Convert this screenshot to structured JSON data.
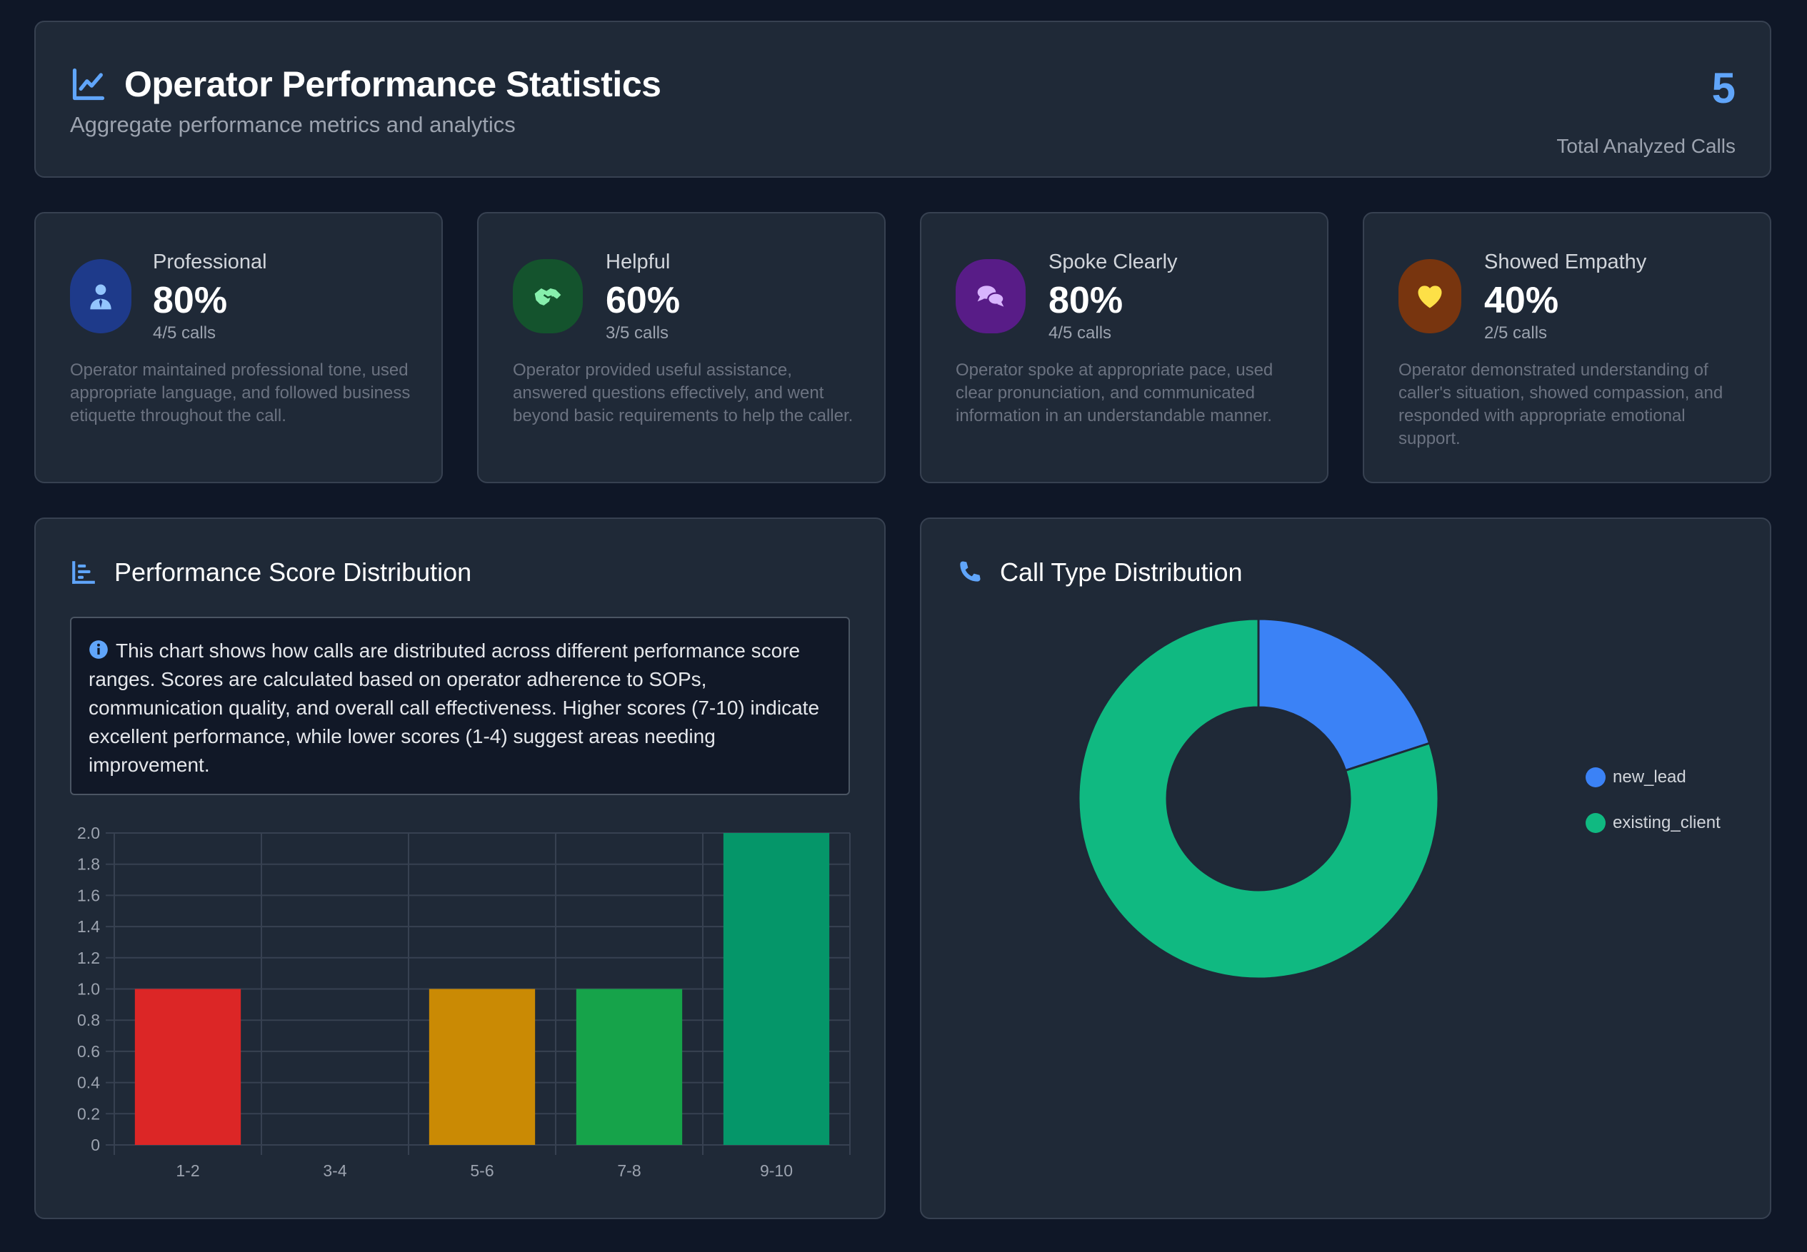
{
  "header": {
    "title": "Operator Performance Statistics",
    "subtitle": "Aggregate performance metrics and analytics",
    "total_value": "5",
    "total_label": "Total Analyzed Calls",
    "icon": "chart-line-icon"
  },
  "metrics": [
    {
      "label": "Professional",
      "value": "80%",
      "calls": "4/5 calls",
      "description": "Operator maintained professional tone, used appropriate language, and followed business etiquette throughout the call.",
      "icon": "user-tie-icon",
      "icon_bg": "#1e3a8a",
      "icon_color": "#93c5fd"
    },
    {
      "label": "Helpful",
      "value": "60%",
      "calls": "3/5 calls",
      "description": "Operator provided useful assistance, answered questions effectively, and went beyond basic requirements to help the caller.",
      "icon": "handshake-icon",
      "icon_bg": "#14532d",
      "icon_color": "#86efac"
    },
    {
      "label": "Spoke Clearly",
      "value": "80%",
      "calls": "4/5 calls",
      "description": "Operator spoke at appropriate pace, used clear pronunciation, and communicated information in an understandable manner.",
      "icon": "comments-icon",
      "icon_bg": "#581c87",
      "icon_color": "#d8b4fe"
    },
    {
      "label": "Showed Empathy",
      "value": "40%",
      "calls": "2/5 calls",
      "description": "Operator demonstrated understanding of caller's situation, showed compassion, and responded with appropriate emotional support.",
      "icon": "heart-icon",
      "icon_bg": "#78350f",
      "icon_color": "#fde047"
    }
  ],
  "score_section": {
    "title": "Performance Score Distribution",
    "info_text": "This chart shows how calls are distributed across different performance score ranges. Scores are calculated based on operator adherence to SOPs, communication quality, and overall call effectiveness. Higher scores (7-10) indicate excellent performance, while lower scores (1-4) suggest areas needing improvement."
  },
  "call_type_section": {
    "title": "Call Type Distribution"
  },
  "chart_data": [
    {
      "type": "bar",
      "title": "Performance Score Distribution",
      "categories": [
        "1-2",
        "3-4",
        "5-6",
        "7-8",
        "9-10"
      ],
      "values": [
        1,
        0,
        1,
        1,
        2
      ],
      "colors": [
        "#dc2626",
        "#6b7280",
        "#ca8a04",
        "#16a34a",
        "#059669"
      ],
      "ylim": [
        0,
        2
      ],
      "yticks": [
        "0",
        "0.2",
        "0.4",
        "0.6",
        "0.8",
        "1.0",
        "1.2",
        "1.4",
        "1.6",
        "1.8",
        "2.0"
      ],
      "grid": true
    },
    {
      "type": "pie",
      "title": "Call Type Distribution",
      "labels": [
        "new_lead",
        "existing_client"
      ],
      "values": [
        1,
        4
      ],
      "colors": [
        "#3b82f6",
        "#10b981"
      ],
      "legend": "right"
    }
  ]
}
